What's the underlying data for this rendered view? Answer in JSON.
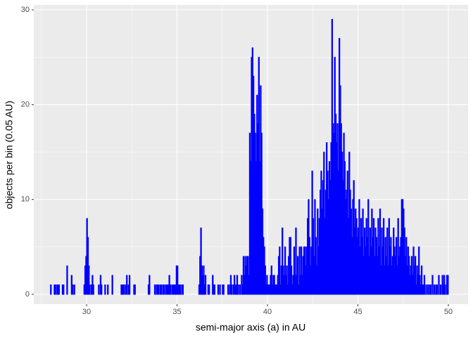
{
  "chart_data": {
    "type": "histogram",
    "x_label": "semi-major axis (a) in AU",
    "y_label": "objects per bin (0.05 AU)",
    "color": "#0000ff",
    "xlim": [
      27.08,
      51.09
    ],
    "ylim": [
      -1.04,
      30.52
    ],
    "xticks": [
      30,
      35,
      40,
      45,
      50
    ],
    "yticks": [
      0,
      10,
      20,
      30
    ],
    "x_minor_grid": [
      27.5,
      32.5,
      37.5,
      42.5,
      47.5
    ],
    "y_minor_grid": [
      5,
      15,
      25
    ],
    "grid": true,
    "bins": [
      28,
      28.05,
      28.1,
      28.15,
      28.2,
      28.25,
      28.3,
      28.35,
      28.4,
      28.45,
      28.5,
      28.55,
      28.6,
      28.65,
      28.7,
      28.75,
      28.8,
      28.85,
      28.9,
      28.95,
      29,
      29.05,
      29.1,
      29.15,
      29.2,
      29.25,
      29.3,
      29.35,
      29.4,
      29.45,
      29.5,
      29.55,
      29.6,
      29.65,
      29.7,
      29.75,
      29.8,
      29.85,
      29.9,
      29.95,
      30,
      30.05,
      30.1,
      30.15,
      30.2,
      30.25,
      30.3,
      30.35,
      30.4,
      30.45,
      30.5,
      30.55,
      30.6,
      30.65,
      30.7,
      30.75,
      30.8,
      30.85,
      30.9,
      30.95,
      31,
      31.05,
      31.1,
      31.15,
      31.2,
      31.25,
      31.3,
      31.35,
      31.4,
      31.45,
      31.5,
      31.55,
      31.6,
      31.65,
      31.7,
      31.75,
      31.8,
      31.85,
      31.9,
      31.95,
      32,
      32.05,
      32.1,
      32.15,
      32.2,
      32.25,
      32.3,
      32.35,
      32.4,
      32.45,
      32.5,
      32.55,
      32.6,
      32.65,
      32.7,
      32.75,
      32.8,
      32.85,
      32.9,
      32.95,
      33,
      33.05,
      33.1,
      33.15,
      33.2,
      33.25,
      33.3,
      33.35,
      33.4,
      33.45,
      33.5,
      33.55,
      33.6,
      33.65,
      33.7,
      33.75,
      33.8,
      33.85,
      33.9,
      33.95,
      34,
      34.05,
      34.1,
      34.15,
      34.2,
      34.25,
      34.3,
      34.35,
      34.4,
      34.45,
      34.5,
      34.55,
      34.6,
      34.65,
      34.7,
      34.75,
      34.8,
      34.85,
      34.9,
      34.95,
      35,
      35.05,
      35.1,
      35.15,
      35.2,
      35.25,
      35.3,
      35.35,
      35.4,
      35.45,
      35.5,
      35.55,
      35.6,
      35.65,
      35.7,
      35.75,
      35.8,
      35.85,
      35.9,
      35.95,
      36,
      36.05,
      36.1,
      36.15,
      36.2,
      36.25,
      36.3,
      36.35,
      36.4,
      36.45,
      36.5,
      36.55,
      36.6,
      36.65,
      36.7,
      36.75,
      36.8,
      36.85,
      36.9,
      36.95,
      37,
      37.05,
      37.1,
      37.15,
      37.2,
      37.25,
      37.3,
      37.35,
      37.4,
      37.45,
      37.5,
      37.55,
      37.6,
      37.65,
      37.7,
      37.75,
      37.8,
      37.85,
      37.9,
      37.95,
      38,
      38.05,
      38.1,
      38.15,
      38.2,
      38.25,
      38.3,
      38.35,
      38.4,
      38.45,
      38.5,
      38.55,
      38.6,
      38.65,
      38.7,
      38.75,
      38.8,
      38.85,
      38.9,
      38.95,
      39,
      39.05,
      39.1,
      39.15,
      39.2,
      39.25,
      39.3,
      39.35,
      39.4,
      39.45,
      39.5,
      39.55,
      39.6,
      39.65,
      39.7,
      39.75,
      39.8,
      39.85,
      39.9,
      39.95,
      40,
      40.05,
      40.1,
      40.15,
      40.2,
      40.25,
      40.3,
      40.35,
      40.4,
      40.45,
      40.5,
      40.55,
      40.6,
      40.65,
      40.7,
      40.75,
      40.8,
      40.85,
      40.9,
      40.95,
      41,
      41.05,
      41.1,
      41.15,
      41.2,
      41.25,
      41.3,
      41.35,
      41.4,
      41.45,
      41.5,
      41.55,
      41.6,
      41.65,
      41.7,
      41.75,
      41.8,
      41.85,
      41.9,
      41.95,
      42,
      42.05,
      42.1,
      42.15,
      42.2,
      42.25,
      42.3,
      42.35,
      42.4,
      42.45,
      42.5,
      42.55,
      42.6,
      42.65,
      42.7,
      42.75,
      42.8,
      42.85,
      42.9,
      42.95,
      43,
      43.05,
      43.1,
      43.15,
      43.2,
      43.25,
      43.3,
      43.35,
      43.4,
      43.45,
      43.5,
      43.55,
      43.6,
      43.65,
      43.7,
      43.75,
      43.8,
      43.85,
      43.9,
      43.95,
      44,
      44.05,
      44.1,
      44.15,
      44.2,
      44.25,
      44.3,
      44.35,
      44.4,
      44.45,
      44.5,
      44.55,
      44.6,
      44.65,
      44.7,
      44.75,
      44.8,
      44.85,
      44.9,
      44.95,
      45,
      45.05,
      45.1,
      45.15,
      45.2,
      45.25,
      45.3,
      45.35,
      45.4,
      45.45,
      45.5,
      45.55,
      45.6,
      45.65,
      45.7,
      45.75,
      45.8,
      45.85,
      45.9,
      45.95,
      46,
      46.05,
      46.1,
      46.15,
      46.2,
      46.25,
      46.3,
      46.35,
      46.4,
      46.45,
      46.5,
      46.55,
      46.6,
      46.65,
      46.7,
      46.75,
      46.8,
      46.85,
      46.9,
      46.95,
      47,
      47.05,
      47.1,
      47.15,
      47.2,
      47.25,
      47.3,
      47.35,
      47.4,
      47.45,
      47.5,
      47.55,
      47.6,
      47.65,
      47.7,
      47.75,
      47.8,
      47.85,
      47.9,
      47.95,
      48,
      48.05,
      48.1,
      48.15,
      48.2,
      48.25,
      48.3,
      48.35,
      48.4,
      48.45,
      48.5,
      48.55,
      48.6,
      48.65,
      48.7,
      48.75,
      48.8,
      48.85,
      48.9,
      48.95,
      49,
      49.05,
      49.1,
      49.15,
      49.2,
      49.25,
      49.3,
      49.35,
      49.4,
      49.45,
      49.5,
      49.55,
      49.6,
      49.65,
      49.7,
      49.75,
      49.8,
      49.85,
      49.9,
      49.95,
      50
    ],
    "values": [
      1,
      0,
      0,
      0,
      1,
      1,
      0,
      1,
      1,
      1,
      0,
      0,
      0,
      1,
      1,
      0,
      0,
      0,
      3,
      0,
      0,
      0,
      0,
      2,
      1,
      0,
      1,
      0,
      0,
      0,
      0,
      0,
      0,
      0,
      0,
      0,
      0,
      1,
      3,
      4,
      8,
      6,
      3,
      1,
      0,
      1,
      2,
      1,
      0,
      0,
      0,
      0,
      0,
      1,
      0,
      2,
      1,
      0,
      0,
      0,
      1,
      0,
      0,
      1,
      0,
      0,
      0,
      0,
      2,
      0,
      0,
      0,
      0,
      0,
      0,
      0,
      0,
      0,
      1,
      1,
      1,
      1,
      0,
      1,
      2,
      0,
      1,
      2,
      0,
      0,
      0,
      0,
      1,
      1,
      0,
      0,
      0,
      0,
      0,
      0,
      0,
      0,
      0,
      0,
      0,
      0,
      0,
      0,
      1,
      2,
      0,
      0,
      0,
      0,
      0,
      1,
      0,
      1,
      1,
      1,
      0,
      1,
      1,
      0,
      1,
      1,
      0,
      1,
      1,
      1,
      1,
      2,
      1,
      0,
      1,
      1,
      1,
      1,
      1,
      3,
      3,
      1,
      1,
      1,
      0,
      1,
      1,
      0,
      0,
      0,
      0,
      0,
      0,
      0,
      0,
      0,
      0,
      0,
      0,
      0,
      0,
      0,
      0,
      0,
      1,
      4,
      7,
      3,
      2,
      3,
      1,
      2,
      0,
      0,
      1,
      1,
      0,
      0,
      0,
      2,
      1,
      1,
      0,
      0,
      0,
      1,
      0,
      1,
      0,
      0,
      1,
      1,
      0,
      0,
      0,
      0,
      1,
      0,
      1,
      2,
      1,
      0,
      1,
      2,
      1,
      1,
      2,
      1,
      0,
      1,
      0,
      2,
      1,
      4,
      2,
      4,
      3,
      4,
      4,
      2,
      17,
      14,
      25,
      26,
      23,
      19,
      17,
      14,
      21,
      18,
      25,
      14,
      22,
      17,
      9,
      6,
      5,
      3,
      1,
      2,
      1,
      1,
      1,
      2,
      3,
      1,
      2,
      2,
      1,
      1,
      1,
      2,
      4,
      5,
      1,
      3,
      7,
      3,
      2,
      5,
      2,
      3,
      1,
      4,
      6,
      6,
      3,
      1,
      2,
      5,
      2,
      7,
      2,
      4,
      1,
      5,
      2,
      5,
      2,
      4,
      5,
      5,
      3,
      5,
      8,
      10,
      6,
      3,
      5,
      13,
      8,
      4,
      10,
      6,
      3,
      9,
      5,
      8,
      11,
      13,
      9,
      12,
      15,
      8,
      11,
      16,
      13,
      10,
      14,
      12,
      16,
      29,
      18,
      17,
      25,
      19,
      16,
      18,
      13,
      27,
      22,
      18,
      15,
      12,
      17,
      14,
      10,
      11,
      13,
      8,
      15,
      11,
      9,
      6,
      10,
      12,
      7,
      9,
      8,
      6,
      7,
      10,
      5,
      8,
      6,
      9,
      4,
      7,
      5,
      8,
      6,
      10,
      4,
      7,
      5,
      9,
      6,
      8,
      4,
      7,
      6,
      4,
      8,
      5,
      9,
      3,
      7,
      5,
      8,
      3,
      6,
      4,
      7,
      3,
      8,
      5,
      6,
      3,
      4,
      7,
      5,
      4,
      6,
      3,
      8,
      4,
      5,
      6,
      10,
      10,
      9,
      7,
      4,
      6,
      3,
      5,
      4,
      2,
      3,
      4,
      2,
      5,
      3,
      4,
      1,
      3,
      2,
      5,
      2,
      1,
      3,
      1,
      1,
      2,
      0,
      1,
      0,
      1,
      0,
      1,
      1,
      0,
      2,
      0,
      1,
      0,
      1,
      1,
      0,
      2,
      0,
      1,
      0,
      2,
      1,
      2,
      1,
      0,
      2,
      2
    ]
  }
}
